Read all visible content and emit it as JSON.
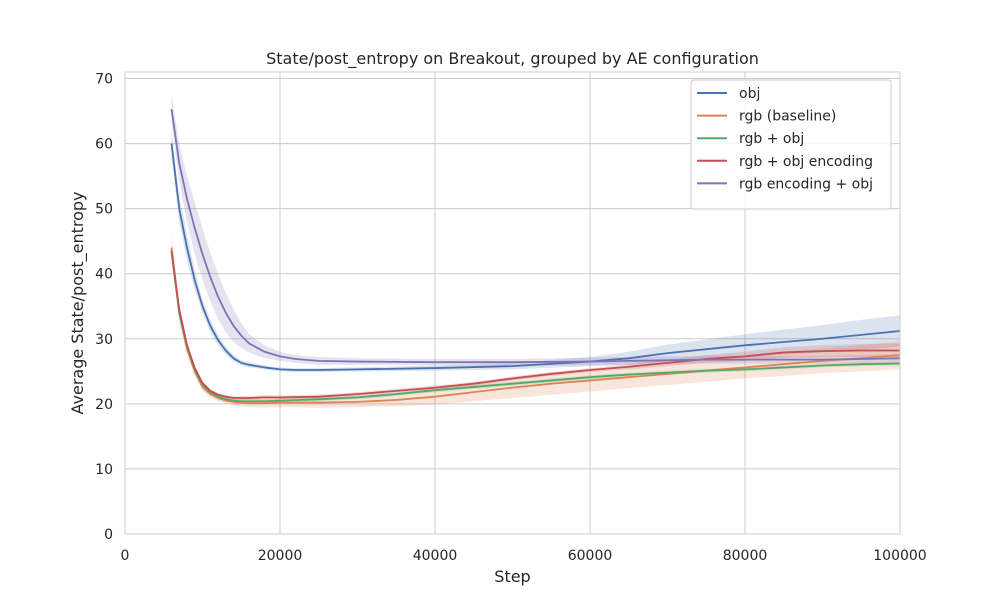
{
  "chart_data": {
    "type": "line",
    "title": "State/post_entropy on Breakout, grouped by AE configuration",
    "xlabel": "Step",
    "ylabel": "Average State/post_entropy",
    "xlim": [
      0,
      100000
    ],
    "ylim": [
      0,
      71
    ],
    "xticks": [
      0,
      20000,
      40000,
      60000,
      80000,
      100000
    ],
    "xtick_labels": [
      "0",
      "20000",
      "40000",
      "60000",
      "80000",
      "100000"
    ],
    "yticks": [
      0,
      10,
      20,
      30,
      40,
      50,
      60,
      70
    ],
    "ytick_labels": [
      "0",
      "10",
      "20",
      "30",
      "40",
      "50",
      "60",
      "70"
    ],
    "grid": true,
    "legend_position": "top-right",
    "series": [
      {
        "name": "obj",
        "color": "#4c72b0",
        "x": [
          6000,
          7000,
          8000,
          9000,
          10000,
          11000,
          12000,
          13000,
          14000,
          15000,
          16000,
          18000,
          20000,
          22000,
          25000,
          30000,
          40000,
          50000,
          60000,
          65000,
          70000,
          75000,
          80000,
          85000,
          90000,
          95000,
          100000
        ],
        "y": [
          60,
          50,
          44,
          39,
          35,
          32,
          29.8,
          28.2,
          27,
          26.3,
          26,
          25.6,
          25.3,
          25.2,
          25.2,
          25.3,
          25.5,
          25.8,
          26.5,
          27,
          27.8,
          28.4,
          29,
          29.5,
          30,
          30.6,
          31.2
        ],
        "band": [
          [
            58,
            62
          ],
          [
            48,
            52
          ],
          [
            42,
            46
          ],
          [
            37.5,
            40.5
          ],
          [
            34,
            36
          ],
          [
            31,
            33
          ],
          [
            29,
            30.6
          ],
          [
            27.6,
            28.8
          ],
          [
            26.5,
            27.5
          ],
          [
            25.9,
            26.7
          ],
          [
            25.6,
            26.4
          ],
          [
            25.3,
            25.9
          ],
          [
            25.0,
            25.6
          ],
          [
            24.9,
            25.5
          ],
          [
            24.9,
            25.5
          ],
          [
            25.0,
            25.6
          ],
          [
            25.1,
            25.9
          ],
          [
            25.3,
            26.3
          ],
          [
            25.8,
            27.2
          ],
          [
            26.0,
            28.0
          ],
          [
            26.5,
            29.1
          ],
          [
            26.9,
            29.9
          ],
          [
            27.3,
            30.7
          ],
          [
            27.6,
            31.4
          ],
          [
            27.9,
            32.1
          ],
          [
            28.3,
            32.9
          ],
          [
            28.8,
            33.6
          ]
        ]
      },
      {
        "name": "rgb (baseline)",
        "color": "#dd8452",
        "x": [
          6000,
          7000,
          8000,
          9000,
          10000,
          11000,
          12000,
          13000,
          14000,
          15000,
          16000,
          18000,
          20000,
          25000,
          30000,
          35000,
          40000,
          45000,
          50000,
          55000,
          60000,
          65000,
          70000,
          75000,
          80000,
          85000,
          90000,
          95000,
          100000
        ],
        "y": [
          44,
          34,
          28.5,
          25,
          22.6,
          21.5,
          20.9,
          20.5,
          20.3,
          20.2,
          20.1,
          20.1,
          20.2,
          20.2,
          20.3,
          20.6,
          21.1,
          21.8,
          22.5,
          23.1,
          23.6,
          24.1,
          24.6,
          25.1,
          25.6,
          26.1,
          26.6,
          27.0,
          27.5
        ],
        "band": [
          [
            42,
            46
          ],
          [
            32.5,
            35.5
          ],
          [
            27.5,
            29.5
          ],
          [
            24.3,
            25.7
          ],
          [
            22,
            23.2
          ],
          [
            21,
            22
          ],
          [
            20.4,
            21.5
          ],
          [
            20,
            21.1
          ],
          [
            19.8,
            20.9
          ],
          [
            19.6,
            20.8
          ],
          [
            19.5,
            20.8
          ],
          [
            19.4,
            20.8
          ],
          [
            19.5,
            20.9
          ],
          [
            19.4,
            21.0
          ],
          [
            19.5,
            21.2
          ],
          [
            19.6,
            21.7
          ],
          [
            19.9,
            22.4
          ],
          [
            20.4,
            23.2
          ],
          [
            20.9,
            24.1
          ],
          [
            21.4,
            24.8
          ],
          [
            21.9,
            25.3
          ],
          [
            22.4,
            25.8
          ],
          [
            22.9,
            26.4
          ],
          [
            23.4,
            27.0
          ],
          [
            23.9,
            27.5
          ],
          [
            24.3,
            28.0
          ],
          [
            24.7,
            28.5
          ],
          [
            25.0,
            29.0
          ],
          [
            25.3,
            29.6
          ]
        ]
      },
      {
        "name": "rgb + obj",
        "color": "#55a868",
        "x": [
          6000,
          7000,
          8000,
          9000,
          10000,
          11000,
          12000,
          13000,
          14000,
          15000,
          16000,
          18000,
          20000,
          25000,
          30000,
          35000,
          40000,
          45000,
          50000,
          55000,
          60000,
          65000,
          70000,
          75000,
          80000,
          85000,
          90000,
          95000,
          100000
        ],
        "y": [
          43.5,
          34,
          28.7,
          25.2,
          23,
          21.8,
          21.1,
          20.7,
          20.5,
          20.4,
          20.4,
          20.4,
          20.5,
          20.7,
          21.0,
          21.5,
          22.1,
          22.6,
          23.1,
          23.6,
          24.1,
          24.5,
          24.8,
          25.1,
          25.3,
          25.6,
          25.9,
          26.1,
          26.2
        ],
        "band": [
          [
            42.5,
            44.5
          ],
          [
            33.3,
            34.7
          ],
          [
            28.2,
            29.2
          ],
          [
            24.8,
            25.6
          ],
          [
            22.7,
            23.3
          ],
          [
            21.5,
            22.1
          ],
          [
            20.8,
            21.4
          ],
          [
            20.4,
            21.0
          ],
          [
            20.2,
            20.8
          ],
          [
            20.1,
            20.7
          ],
          [
            20.1,
            20.7
          ],
          [
            20.1,
            20.7
          ],
          [
            20.2,
            20.8
          ],
          [
            20.4,
            21.0
          ],
          [
            20.7,
            21.3
          ],
          [
            21.2,
            21.8
          ],
          [
            21.8,
            22.4
          ],
          [
            22.3,
            22.9
          ],
          [
            22.8,
            23.4
          ],
          [
            23.3,
            23.9
          ],
          [
            23.8,
            24.4
          ],
          [
            24.2,
            24.8
          ],
          [
            24.5,
            25.1
          ],
          [
            24.8,
            25.4
          ],
          [
            25.0,
            25.6
          ],
          [
            25.3,
            25.9
          ],
          [
            25.6,
            26.2
          ],
          [
            25.8,
            26.4
          ],
          [
            25.9,
            26.5
          ]
        ]
      },
      {
        "name": "rgb + obj encoding",
        "color": "#c44e52",
        "x": [
          6000,
          7000,
          8000,
          9000,
          10000,
          11000,
          12000,
          13000,
          14000,
          15000,
          16000,
          18000,
          20000,
          25000,
          30000,
          35000,
          40000,
          45000,
          50000,
          55000,
          60000,
          65000,
          70000,
          75000,
          80000,
          85000,
          90000,
          95000,
          100000
        ],
        "y": [
          43.5,
          34.5,
          29,
          25.5,
          23.2,
          22,
          21.4,
          21.1,
          20.9,
          20.9,
          20.9,
          21.0,
          21.0,
          21.1,
          21.5,
          22.0,
          22.5,
          23.1,
          23.9,
          24.6,
          25.2,
          25.7,
          26.3,
          26.9,
          27.3,
          27.9,
          28.1,
          28.2,
          28.2
        ],
        "band": [
          [
            42.5,
            44.5
          ],
          [
            33.8,
            35.2
          ],
          [
            28.5,
            29.5
          ],
          [
            25.1,
            25.9
          ],
          [
            22.9,
            23.5
          ],
          [
            21.7,
            22.3
          ],
          [
            21.1,
            21.7
          ],
          [
            20.8,
            21.4
          ],
          [
            20.6,
            21.2
          ],
          [
            20.6,
            21.2
          ],
          [
            20.6,
            21.2
          ],
          [
            20.7,
            21.3
          ],
          [
            20.7,
            21.3
          ],
          [
            20.8,
            21.4
          ],
          [
            21.2,
            21.8
          ],
          [
            21.7,
            22.3
          ],
          [
            22.2,
            22.8
          ],
          [
            22.8,
            23.4
          ],
          [
            23.6,
            24.2
          ],
          [
            24.3,
            24.9
          ],
          [
            24.9,
            25.5
          ],
          [
            25.3,
            26.1
          ],
          [
            25.8,
            26.8
          ],
          [
            26.3,
            27.5
          ],
          [
            26.6,
            28.0
          ],
          [
            27.1,
            28.7
          ],
          [
            27.2,
            29.0
          ],
          [
            27.2,
            29.2
          ],
          [
            27.1,
            29.3
          ]
        ]
      },
      {
        "name": "rgb encoding + obj",
        "color": "#8172b3",
        "x": [
          6000,
          7000,
          8000,
          9000,
          10000,
          11000,
          12000,
          13000,
          14000,
          15000,
          16000,
          18000,
          20000,
          22000,
          25000,
          30000,
          40000,
          50000,
          60000,
          65000,
          70000,
          75000,
          80000,
          85000,
          90000,
          95000,
          100000
        ],
        "y": [
          65.3,
          57,
          51.5,
          47,
          43,
          39.5,
          36.5,
          34,
          32,
          30.5,
          29.3,
          28,
          27.3,
          26.9,
          26.6,
          26.5,
          26.4,
          26.4,
          26.5,
          26.6,
          26.7,
          26.8,
          26.8,
          26.8,
          26.8,
          26.9,
          27.0
        ],
        "band": [
          [
            63.5,
            67.5
          ],
          [
            54,
            60
          ],
          [
            48,
            55
          ],
          [
            43,
            51
          ],
          [
            39,
            47
          ],
          [
            35.8,
            43.2
          ],
          [
            33,
            40
          ],
          [
            31,
            37
          ],
          [
            29.5,
            34.5
          ],
          [
            28.6,
            32.4
          ],
          [
            27.9,
            30.7
          ],
          [
            27.0,
            29.0
          ],
          [
            26.6,
            28.0
          ],
          [
            26.3,
            27.5
          ],
          [
            26.0,
            27.2
          ],
          [
            26.0,
            27.0
          ],
          [
            25.9,
            26.9
          ],
          [
            25.9,
            26.9
          ],
          [
            25.9,
            27.1
          ],
          [
            26.0,
            27.2
          ],
          [
            26.1,
            27.3
          ],
          [
            26.2,
            27.4
          ],
          [
            26.2,
            27.4
          ],
          [
            26.2,
            27.4
          ],
          [
            26.2,
            27.4
          ],
          [
            26.3,
            27.5
          ],
          [
            26.4,
            27.6
          ]
        ]
      }
    ]
  }
}
